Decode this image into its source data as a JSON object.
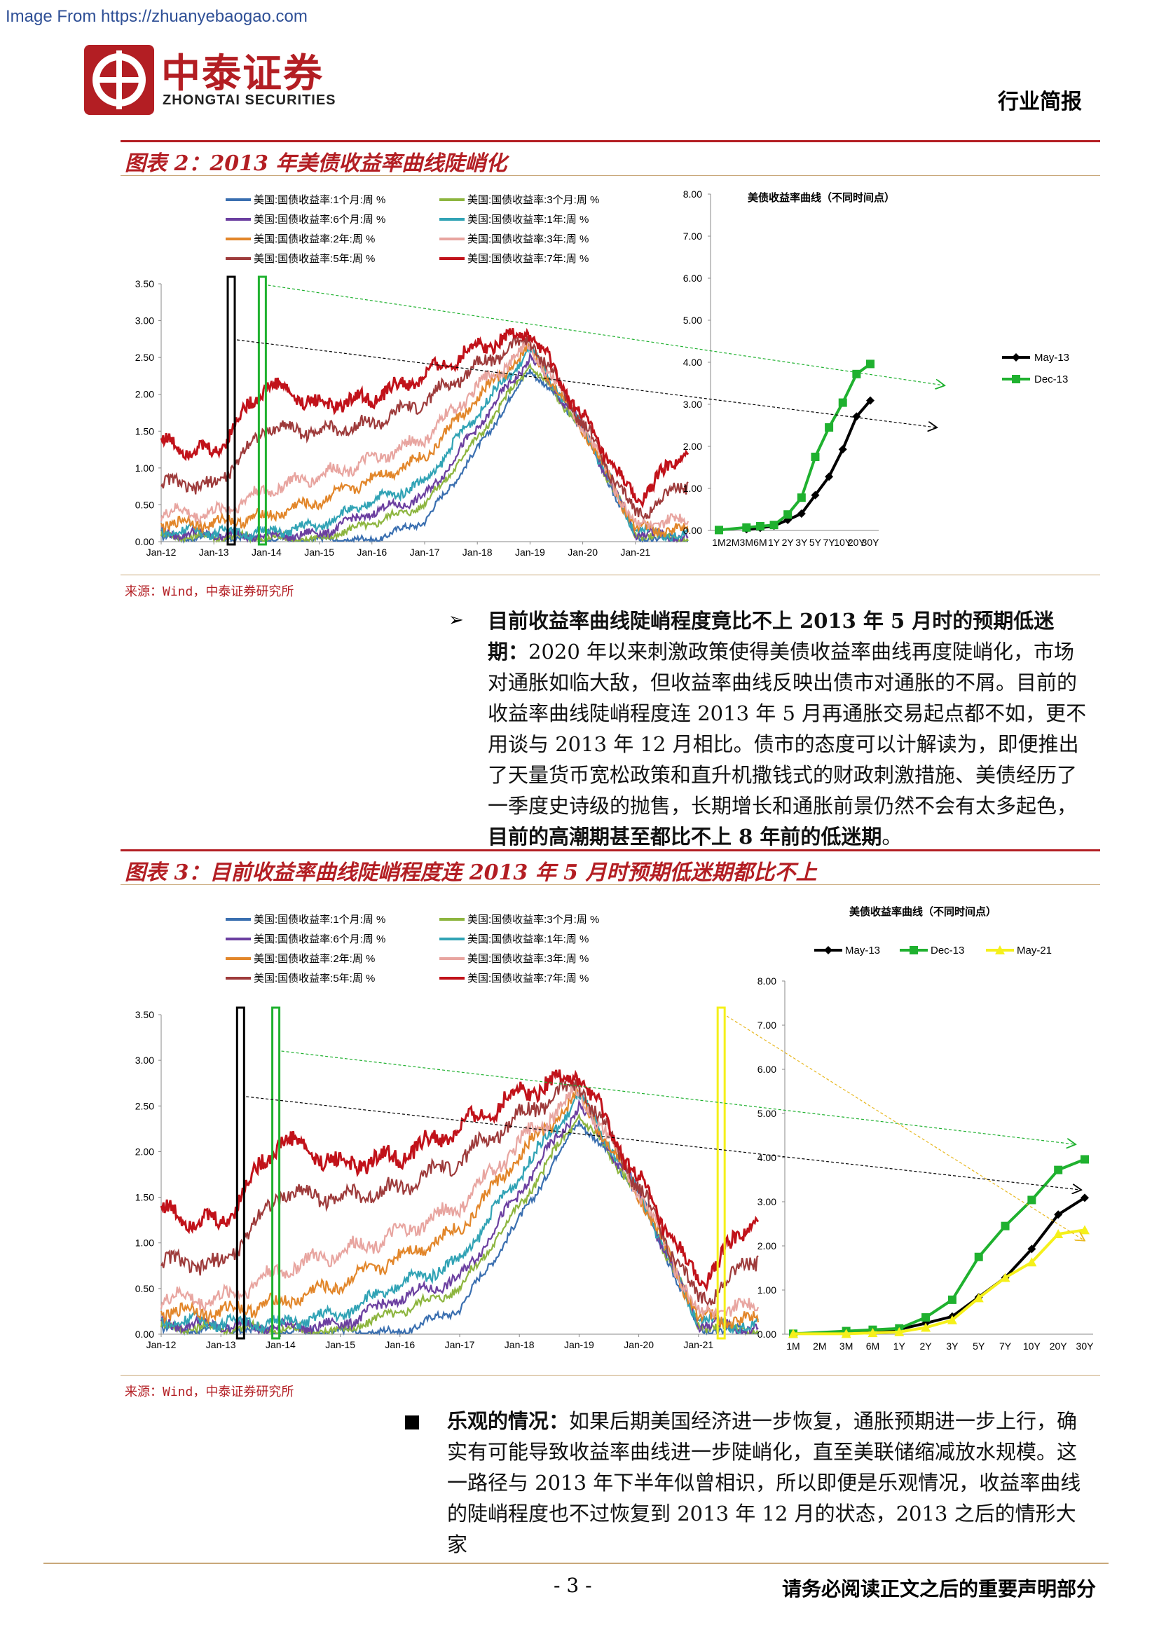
{
  "watermark": "Image From https://zhuanyebaogao.com",
  "header": {
    "logo_cn": "中泰证券",
    "logo_en": "ZHONGTAI SECURITIES",
    "doc_type": "行业简报",
    "brand_color": "#b31e23"
  },
  "figure2": {
    "title": "图表 2：2013 年美债收益率曲线陡峭化",
    "source": "来源：Wind，中泰证券研究所"
  },
  "figure3": {
    "title": "图表 3：目前收益率曲线陡峭程度连 2013 年 5 月时预期低迷期都比不上",
    "source": "来源：Wind，中泰证券研究所"
  },
  "section1": {
    "heading": "目前收益率曲线陡峭程度竟比不上 2013 年 5 月时的预期低迷期：",
    "body": "2020 年以来刺激政策使得美债收益率曲线再度陡峭化，市场对通胀如临大敌，但收益率曲线反映出债市对通胀的不屑。目前的收益率曲线陡峭程度连 2013 年 5 月再通胀交易起点都不如，更不用谈与 2013 年 12 月相比。债市的态度可以计解读为，即便推出了天量货币宽松政策和直升机撒钱式的财政刺激措施、美债经历了一季度史诗级的抛售，长期增长和通胀前景仍然不会有太多起色，",
    "bold_tail": "目前的高潮期甚至都比不上 8 年前的低迷期",
    "end": "。"
  },
  "section2": {
    "heading": "乐观的情况：",
    "body": "如果后期美国经济进一步恢复，通胀预期进一步上行，确实有可能导致收益率曲线进一步陡峭化，直至美联储缩减放水规模。这一路径与 2013 年下半年似曾相识，所以即便是乐观情况，收益率曲线的陡峭程度也不过恢复到 2013 年 12 月的状态，2013 之后的情形大家"
  },
  "footer": {
    "page": "- 3 -",
    "disclaimer": "请务必阅读正文之后的重要声明部分"
  },
  "chart_data": [
    {
      "type": "line",
      "id": "fig2-left",
      "title": "",
      "x_ticks": [
        "Jan-12",
        "Jan-13",
        "Jan-14",
        "Jan-15",
        "Jan-16",
        "Jan-17",
        "Jan-18",
        "Jan-19",
        "Jan-20",
        "Jan-21"
      ],
      "ylim": [
        0,
        3.5
      ],
      "y_ticks": [
        "0.00",
        "0.50",
        "1.00",
        "1.50",
        "2.00",
        "2.50",
        "3.00",
        "3.50"
      ],
      "series": [
        {
          "name": "美国:国债收益率:1个月:周 %",
          "color": "#3a6fb0",
          "values": [
            0.05,
            0.06,
            0.03,
            0.02,
            0.02,
            0.28,
            1.25,
            2.35,
            1.55,
            0.05,
            0.03
          ]
        },
        {
          "name": "美国:国债收益率:3个月:周 %",
          "color": "#8db53f",
          "values": [
            0.08,
            0.07,
            0.05,
            0.03,
            0.25,
            0.5,
            1.4,
            2.4,
            1.55,
            0.1,
            0.03
          ]
        },
        {
          "name": "美国:国债收益率:6个月:周 %",
          "color": "#6b3fa0",
          "values": [
            0.12,
            0.1,
            0.08,
            0.1,
            0.4,
            0.6,
            1.55,
            2.5,
            1.55,
            0.12,
            0.05
          ]
        },
        {
          "name": "美国:国债收益率:1年:周 %",
          "color": "#31a3b5",
          "values": [
            0.15,
            0.14,
            0.12,
            0.22,
            0.55,
            0.8,
            1.75,
            2.6,
            1.55,
            0.14,
            0.07
          ]
        },
        {
          "name": "美国:国债收益率:2年:周 %",
          "color": "#e2862a",
          "values": [
            0.25,
            0.25,
            0.35,
            0.55,
            0.85,
            1.15,
            1.95,
            2.62,
            1.55,
            0.18,
            0.15
          ]
        },
        {
          "name": "美国:国债收益率:3年:周 %",
          "color": "#e8a5a0",
          "values": [
            0.4,
            0.38,
            0.7,
            0.9,
            1.1,
            1.4,
            2.1,
            2.66,
            1.58,
            0.22,
            0.3
          ]
        },
        {
          "name": "美国:国债收益率:5年:周 %",
          "color": "#9e3b3b",
          "values": [
            0.8,
            0.75,
            1.55,
            1.5,
            1.6,
            1.9,
            2.4,
            2.75,
            1.62,
            0.35,
            0.8
          ]
        },
        {
          "name": "美国:国债收益率:7年:周 %",
          "color": "#c1121a",
          "values": [
            1.35,
            1.2,
            2.15,
            1.85,
            1.95,
            2.25,
            2.65,
            2.85,
            1.68,
            0.55,
            1.25
          ]
        }
      ]
    },
    {
      "type": "line",
      "id": "fig2-right",
      "title": "美债收益率曲线（不同时间点）",
      "categories": [
        "1M",
        "2M",
        "3M",
        "6M",
        "1Y",
        "2Y",
        "3Y",
        "5Y",
        "7Y",
        "10Y",
        "20Y",
        "30Y"
      ],
      "ylim": [
        0,
        8
      ],
      "y_ticks": [
        "0.00",
        "1.00",
        "2.00",
        "3.00",
        "4.00",
        "5.00",
        "6.00",
        "7.00",
        "8.00"
      ],
      "series": [
        {
          "name": "May-13",
          "color": "#000000",
          "values": [
            null,
            null,
            0.03,
            0.06,
            0.11,
            0.25,
            0.4,
            0.84,
            1.28,
            1.93,
            2.71,
            3.09
          ]
        },
        {
          "name": "Dec-13",
          "color": "#1fb12f",
          "values": [
            0.01,
            null,
            0.07,
            0.1,
            0.13,
            0.38,
            0.78,
            1.75,
            2.45,
            3.04,
            3.72,
            3.96
          ]
        }
      ]
    },
    {
      "type": "line",
      "id": "fig3-left",
      "title": "",
      "x_ticks": [
        "Jan-12",
        "Jan-13",
        "Jan-14",
        "Jan-15",
        "Jan-16",
        "Jan-17",
        "Jan-18",
        "Jan-19",
        "Jan-20",
        "Jan-21"
      ],
      "ylim": [
        0,
        3.5
      ],
      "y_ticks": [
        "0.00",
        "0.50",
        "1.00",
        "1.50",
        "2.00",
        "2.50",
        "3.00",
        "3.50"
      ],
      "series": [
        {
          "name": "美国:国债收益率:1个月:周 %",
          "color": "#3a6fb0",
          "values": [
            0.05,
            0.06,
            0.03,
            0.02,
            0.02,
            0.28,
            1.25,
            2.35,
            1.55,
            0.05,
            0.03
          ]
        },
        {
          "name": "美国:国债收益率:3个月:周 %",
          "color": "#8db53f",
          "values": [
            0.08,
            0.07,
            0.05,
            0.03,
            0.25,
            0.5,
            1.4,
            2.4,
            1.55,
            0.1,
            0.03
          ]
        },
        {
          "name": "美国:国债收益率:6个月:周 %",
          "color": "#6b3fa0",
          "values": [
            0.12,
            0.1,
            0.08,
            0.1,
            0.4,
            0.6,
            1.55,
            2.5,
            1.55,
            0.12,
            0.05
          ]
        },
        {
          "name": "美国:国债收益率:1年:周 %",
          "color": "#31a3b5",
          "values": [
            0.15,
            0.14,
            0.12,
            0.22,
            0.55,
            0.8,
            1.75,
            2.6,
            1.55,
            0.14,
            0.07
          ]
        },
        {
          "name": "美国:国债收益率:2年:周 %",
          "color": "#e2862a",
          "values": [
            0.25,
            0.25,
            0.35,
            0.55,
            0.85,
            1.15,
            1.95,
            2.62,
            1.55,
            0.18,
            0.15
          ]
        },
        {
          "name": "美国:国债收益率:3年:周 %",
          "color": "#e8a5a0",
          "values": [
            0.4,
            0.38,
            0.7,
            0.9,
            1.1,
            1.4,
            2.1,
            2.66,
            1.58,
            0.22,
            0.32
          ]
        },
        {
          "name": "美国:国债收益率:5年:周 %",
          "color": "#9e3b3b",
          "values": [
            0.8,
            0.75,
            1.55,
            1.5,
            1.6,
            1.9,
            2.4,
            2.75,
            1.62,
            0.35,
            0.85
          ]
        },
        {
          "name": "美国:国债收益率:7年:周 %",
          "color": "#c1121a",
          "values": [
            1.35,
            1.2,
            2.15,
            1.85,
            1.95,
            2.25,
            2.65,
            2.85,
            1.68,
            0.55,
            1.3
          ]
        }
      ]
    },
    {
      "type": "line",
      "id": "fig3-right",
      "title": "美债收益率曲线（不同时间点）",
      "categories": [
        "1M",
        "2M",
        "3M",
        "6M",
        "1Y",
        "2Y",
        "3Y",
        "5Y",
        "7Y",
        "10Y",
        "20Y",
        "30Y"
      ],
      "ylim": [
        0,
        8
      ],
      "y_ticks": [
        "0.00",
        "1.00",
        "2.00",
        "3.00",
        "4.00",
        "5.00",
        "6.00",
        "7.00",
        "8.00"
      ],
      "series": [
        {
          "name": "May-13",
          "color": "#000000",
          "values": [
            null,
            null,
            0.03,
            0.06,
            0.11,
            0.25,
            0.4,
            0.84,
            1.28,
            1.93,
            2.71,
            3.09
          ]
        },
        {
          "name": "Dec-13",
          "color": "#1fb12f",
          "values": [
            0.01,
            null,
            0.07,
            0.1,
            0.13,
            0.38,
            0.78,
            1.75,
            2.45,
            3.04,
            3.72,
            3.96
          ]
        },
        {
          "name": "May-21",
          "color": "#f5f01a",
          "values": [
            0.01,
            null,
            0.01,
            0.03,
            0.05,
            0.15,
            0.32,
            0.82,
            1.28,
            1.63,
            2.27,
            2.36
          ]
        }
      ]
    }
  ]
}
